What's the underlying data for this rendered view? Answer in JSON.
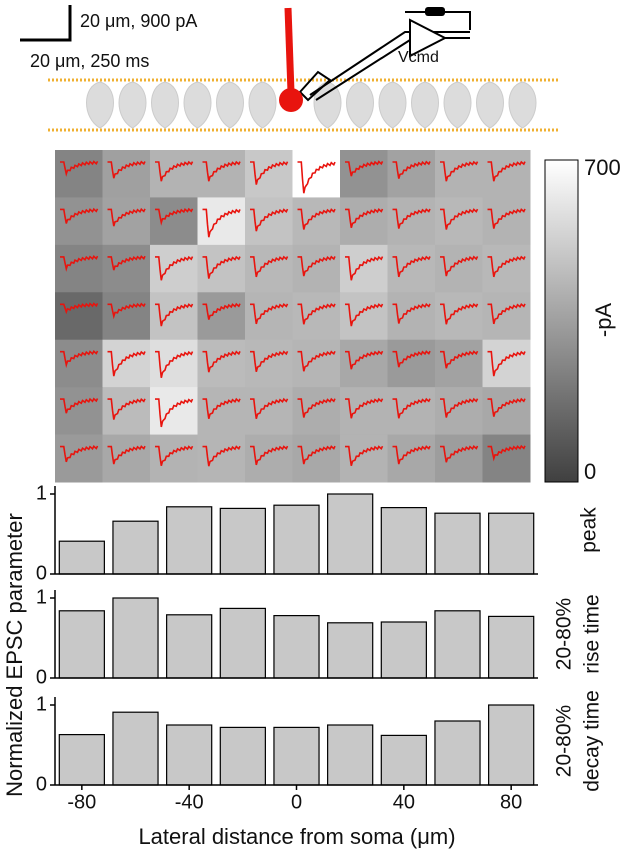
{
  "annotations": {
    "scale_y": "20 μm, 900 pA",
    "scale_x": "20 μm, 250 ms",
    "amplifier": "Vcmd"
  },
  "chart_data": [
    {
      "type": "heatmap",
      "values": [
        [
          250,
          350,
          420,
          420,
          500,
          700,
          300,
          360,
          420,
          420
        ],
        [
          300,
          360,
          280,
          620,
          480,
          440,
          400,
          420,
          440,
          420
        ],
        [
          250,
          280,
          520,
          480,
          440,
          420,
          520,
          440,
          420,
          440
        ],
        [
          150,
          250,
          480,
          330,
          430,
          440,
          480,
          420,
          440,
          430
        ],
        [
          280,
          540,
          580,
          450,
          440,
          430,
          380,
          330,
          360,
          540
        ],
        [
          300,
          450,
          620,
          430,
          430,
          400,
          420,
          420,
          400,
          380
        ],
        [
          330,
          380,
          420,
          430,
          400,
          380,
          420,
          380,
          340,
          250
        ]
      ],
      "colormap": [
        "#404040",
        "#ffffff"
      ],
      "trace_color": "#e8140e",
      "zlim": [
        0,
        700
      ],
      "zticks": [
        0,
        700
      ],
      "colorbar_label": "-pA"
    },
    {
      "type": "bar",
      "side_label": "peak",
      "color": "#c8c8c8",
      "x": [
        -80,
        -60,
        -40,
        -20,
        0,
        20,
        40,
        60,
        80
      ],
      "values": [
        0.41,
        0.66,
        0.84,
        0.82,
        0.86,
        1.0,
        0.83,
        0.76,
        0.76
      ],
      "xlim": [
        -90,
        90
      ],
      "ylim": [
        0,
        1.1
      ],
      "yticks": [
        0,
        1
      ]
    },
    {
      "type": "bar",
      "side_label": [
        "20-80%",
        "rise time"
      ],
      "color": "#c8c8c8",
      "x": [
        -80,
        -60,
        -40,
        -20,
        0,
        20,
        40,
        60,
        80
      ],
      "values": [
        0.84,
        1.0,
        0.79,
        0.87,
        0.78,
        0.69,
        0.7,
        0.84,
        0.77
      ],
      "xlim": [
        -90,
        90
      ],
      "ylim": [
        0,
        1.1
      ],
      "yticks": [
        0,
        1
      ]
    },
    {
      "type": "bar",
      "side_label": [
        "20-80%",
        "decay time"
      ],
      "color": "#c8c8c8",
      "x": [
        -80,
        -60,
        -40,
        -20,
        0,
        20,
        40,
        60,
        80
      ],
      "values": [
        0.63,
        0.91,
        0.75,
        0.72,
        0.72,
        0.75,
        0.62,
        0.8,
        1.0
      ],
      "xlim": [
        -90,
        90
      ],
      "ylim": [
        0,
        1.1
      ],
      "yticks": [
        0,
        1
      ],
      "xticks": [
        -80,
        -40,
        0,
        40,
        80
      ],
      "xlabel": "Lateral distance from soma (μm)",
      "ylabel": "Normalized EPSC parameter"
    }
  ]
}
